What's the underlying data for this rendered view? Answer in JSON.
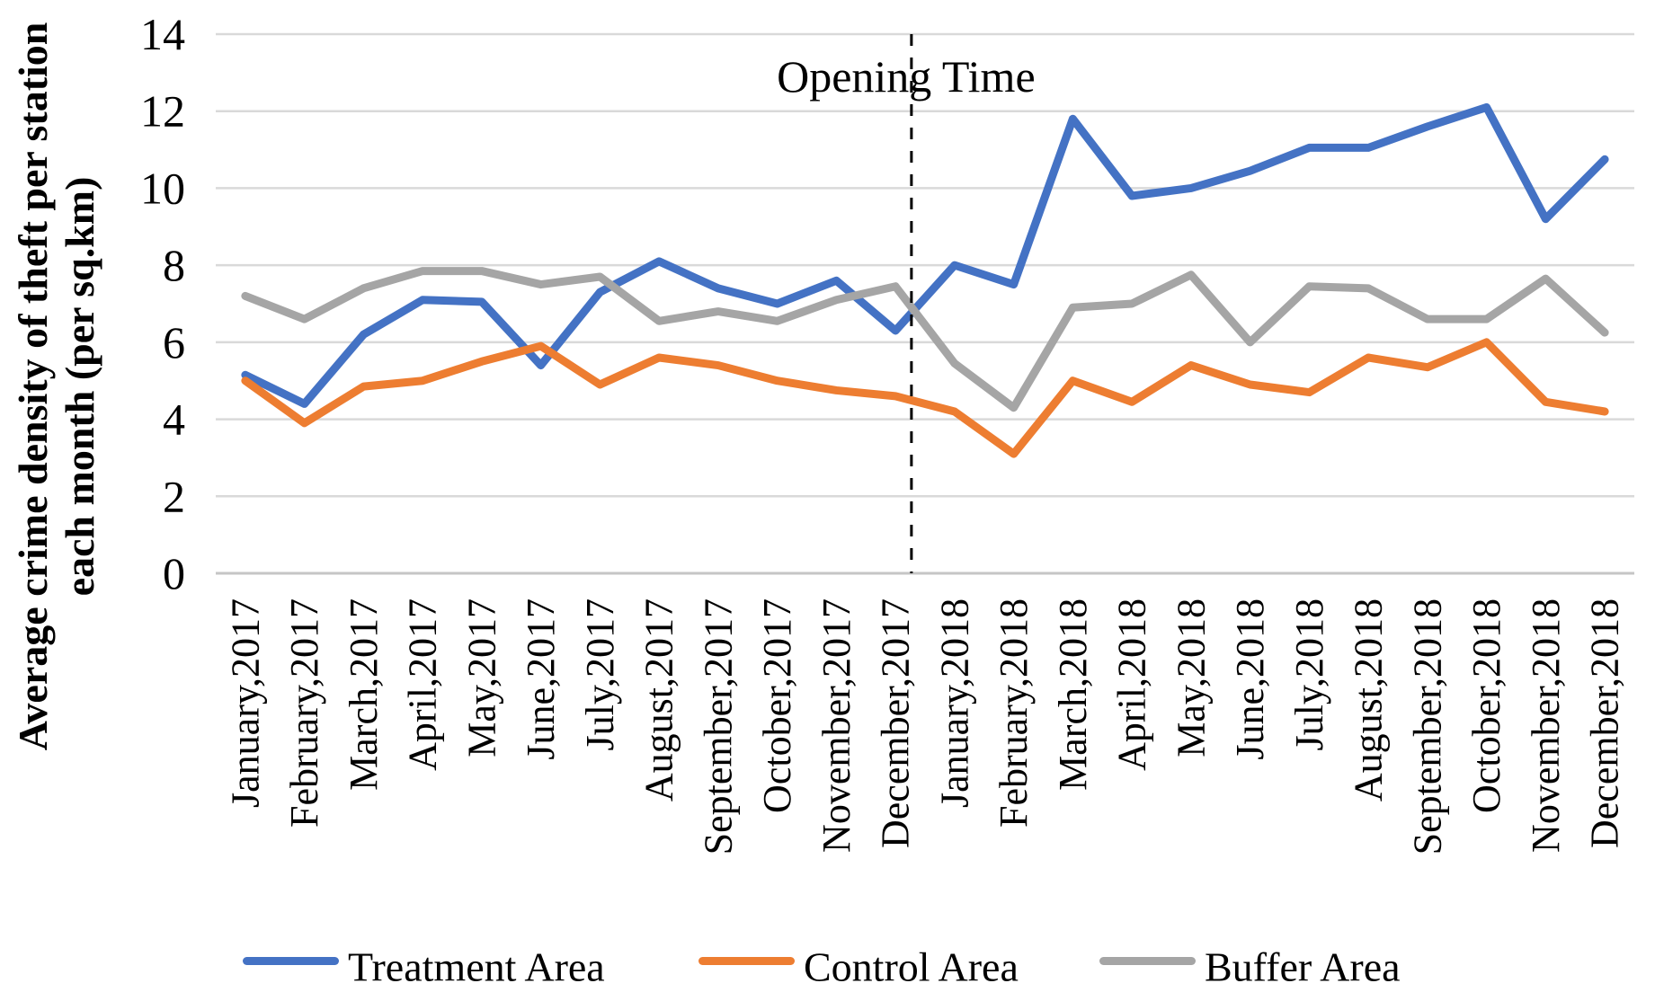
{
  "chart_data": {
    "type": "line",
    "title": "",
    "categories": [
      "January,2017",
      "February,2017",
      "March,2017",
      "April,2017",
      "May,2017",
      "June,2017",
      "July,2017",
      "August,2017",
      "September,2017",
      "October,2017",
      "November,2017",
      "December,2017",
      "January,2018",
      "February,2018",
      "March,2018",
      "April,2018",
      "May,2018",
      "June,2018",
      "July,2018",
      "August,2018",
      "September,2018",
      "October,2018",
      "November,2018",
      "December,2018"
    ],
    "series": [
      {
        "name": "Treatment Area",
        "color": "#4472C4",
        "values": [
          5.15,
          4.4,
          6.2,
          7.1,
          7.05,
          5.4,
          7.3,
          8.1,
          7.4,
          7.0,
          7.6,
          6.3,
          8.0,
          7.5,
          11.8,
          9.8,
          10.0,
          10.45,
          11.05,
          11.05,
          11.6,
          12.1,
          9.2,
          10.75
        ]
      },
      {
        "name": "Control Area",
        "color": "#ED7D31",
        "values": [
          5.0,
          3.9,
          4.85,
          5.0,
          5.5,
          5.9,
          4.9,
          5.6,
          5.4,
          5.0,
          4.75,
          4.6,
          4.2,
          3.1,
          5.0,
          4.45,
          5.4,
          4.9,
          4.7,
          5.6,
          5.35,
          6.0,
          4.45,
          4.2
        ]
      },
      {
        "name": "Buffer Area",
        "color": "#A5A5A5",
        "values": [
          7.2,
          6.6,
          7.4,
          7.85,
          7.85,
          7.5,
          7.7,
          6.55,
          6.8,
          6.55,
          7.1,
          7.45,
          5.45,
          4.3,
          6.9,
          7.0,
          7.75,
          6.0,
          7.45,
          7.4,
          6.6,
          6.6,
          7.65,
          6.25
        ]
      }
    ],
    "ylabel_line1": "Average crime density of theft per station",
    "ylabel_line2": "each month (per sq.km)",
    "xlabel": "",
    "ylim": [
      0,
      14
    ],
    "yticks": [
      0,
      2,
      4,
      6,
      8,
      10,
      12,
      14
    ],
    "grid": true,
    "legend_position": "bottom",
    "annotation": {
      "label": "Opening Time",
      "x_index": 11.27,
      "style": "dashed-vertical-line"
    },
    "colors": {
      "gridline": "#D9D9D9",
      "axis_line": "#C6C6C6",
      "divider": "#000000"
    }
  }
}
